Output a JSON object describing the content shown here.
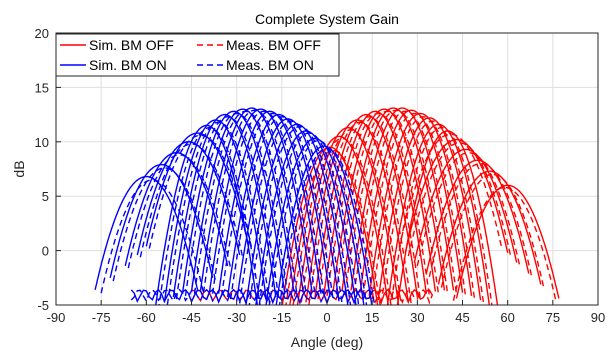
{
  "chart_data": {
    "type": "line",
    "title": "Complete System Gain",
    "xlabel": "Angle (deg)",
    "ylabel": "dB",
    "xlim": [
      -90,
      90
    ],
    "ylim": [
      -5,
      20
    ],
    "xticks": [
      "-90",
      "-75",
      "-60",
      "-45",
      "-30",
      "-15",
      "0",
      "15",
      "30",
      "45",
      "60",
      "75",
      "90"
    ],
    "yticks": [
      "-5",
      "0",
      "5",
      "10",
      "15",
      "20"
    ],
    "grid": true,
    "legend_position": "top-left",
    "legend": [
      "Sim. BM OFF",
      "Meas. BM OFF",
      "Sim. BM ON",
      "Meas. BM ON"
    ],
    "series": [
      {
        "name": "Sim. BM OFF",
        "color": "#ff0000",
        "style": "solid",
        "beam_peaks": [
          [
            1,
            9.5
          ],
          [
            4,
            10.5
          ],
          [
            7,
            11.3
          ],
          [
            10,
            12.0
          ],
          [
            13,
            12.5
          ],
          [
            16,
            12.8
          ],
          [
            19,
            13.0
          ],
          [
            22,
            13.1
          ],
          [
            25,
            13.1
          ],
          [
            28,
            12.9
          ],
          [
            31,
            12.6
          ],
          [
            34,
            12.2
          ],
          [
            37,
            11.6
          ],
          [
            40,
            11.0
          ],
          [
            43,
            10.2
          ],
          [
            46,
            9.3
          ],
          [
            50,
            8.3
          ],
          [
            54,
            7.3
          ],
          [
            60,
            6.0
          ]
        ]
      },
      {
        "name": "Meas. BM OFF",
        "color": "#ff0000",
        "style": "dashed",
        "beam_peaks": [
          [
            2,
            9.2
          ],
          [
            5,
            10.3
          ],
          [
            8,
            11.1
          ],
          [
            11,
            11.8
          ],
          [
            14,
            12.3
          ],
          [
            17,
            12.6
          ],
          [
            20,
            12.8
          ],
          [
            23,
            12.9
          ],
          [
            26,
            12.8
          ],
          [
            29,
            12.6
          ],
          [
            32,
            12.3
          ],
          [
            35,
            11.9
          ],
          [
            38,
            11.3
          ],
          [
            41,
            10.7
          ],
          [
            44,
            9.9
          ],
          [
            47,
            9.0
          ],
          [
            51,
            8.0
          ],
          [
            55,
            7.0
          ],
          [
            59,
            5.8
          ]
        ]
      },
      {
        "name": "Sim. BM ON",
        "color": "#0000ff",
        "style": "solid",
        "beam_peaks": [
          [
            -60,
            6.8
          ],
          [
            -55,
            7.9
          ],
          [
            -50,
            9.0
          ],
          [
            -46,
            10.0
          ],
          [
            -43,
            10.8
          ],
          [
            -40,
            11.5
          ],
          [
            -37,
            12.0
          ],
          [
            -34,
            12.5
          ],
          [
            -31,
            12.8
          ],
          [
            -28,
            13.0
          ],
          [
            -25,
            13.1
          ],
          [
            -22,
            13.0
          ],
          [
            -19,
            12.8
          ],
          [
            -16,
            12.5
          ],
          [
            -13,
            12.1
          ],
          [
            -10,
            11.6
          ],
          [
            -7,
            11.0
          ],
          [
            -4,
            10.3
          ],
          [
            -1,
            9.6
          ]
        ]
      },
      {
        "name": "Meas. BM ON",
        "color": "#0000ff",
        "style": "dashed",
        "beam_peaks": [
          [
            -58,
            6.5
          ],
          [
            -54,
            7.6
          ],
          [
            -49,
            8.8
          ],
          [
            -45,
            9.8
          ],
          [
            -42,
            10.6
          ],
          [
            -39,
            11.3
          ],
          [
            -36,
            11.8
          ],
          [
            -33,
            12.3
          ],
          [
            -30,
            12.6
          ],
          [
            -27,
            12.8
          ],
          [
            -24,
            12.9
          ],
          [
            -21,
            12.8
          ],
          [
            -18,
            12.6
          ],
          [
            -15,
            12.3
          ],
          [
            -12,
            11.9
          ],
          [
            -9,
            11.4
          ],
          [
            -6,
            10.8
          ],
          [
            -3,
            10.1
          ],
          [
            0,
            9.4
          ]
        ]
      }
    ]
  }
}
